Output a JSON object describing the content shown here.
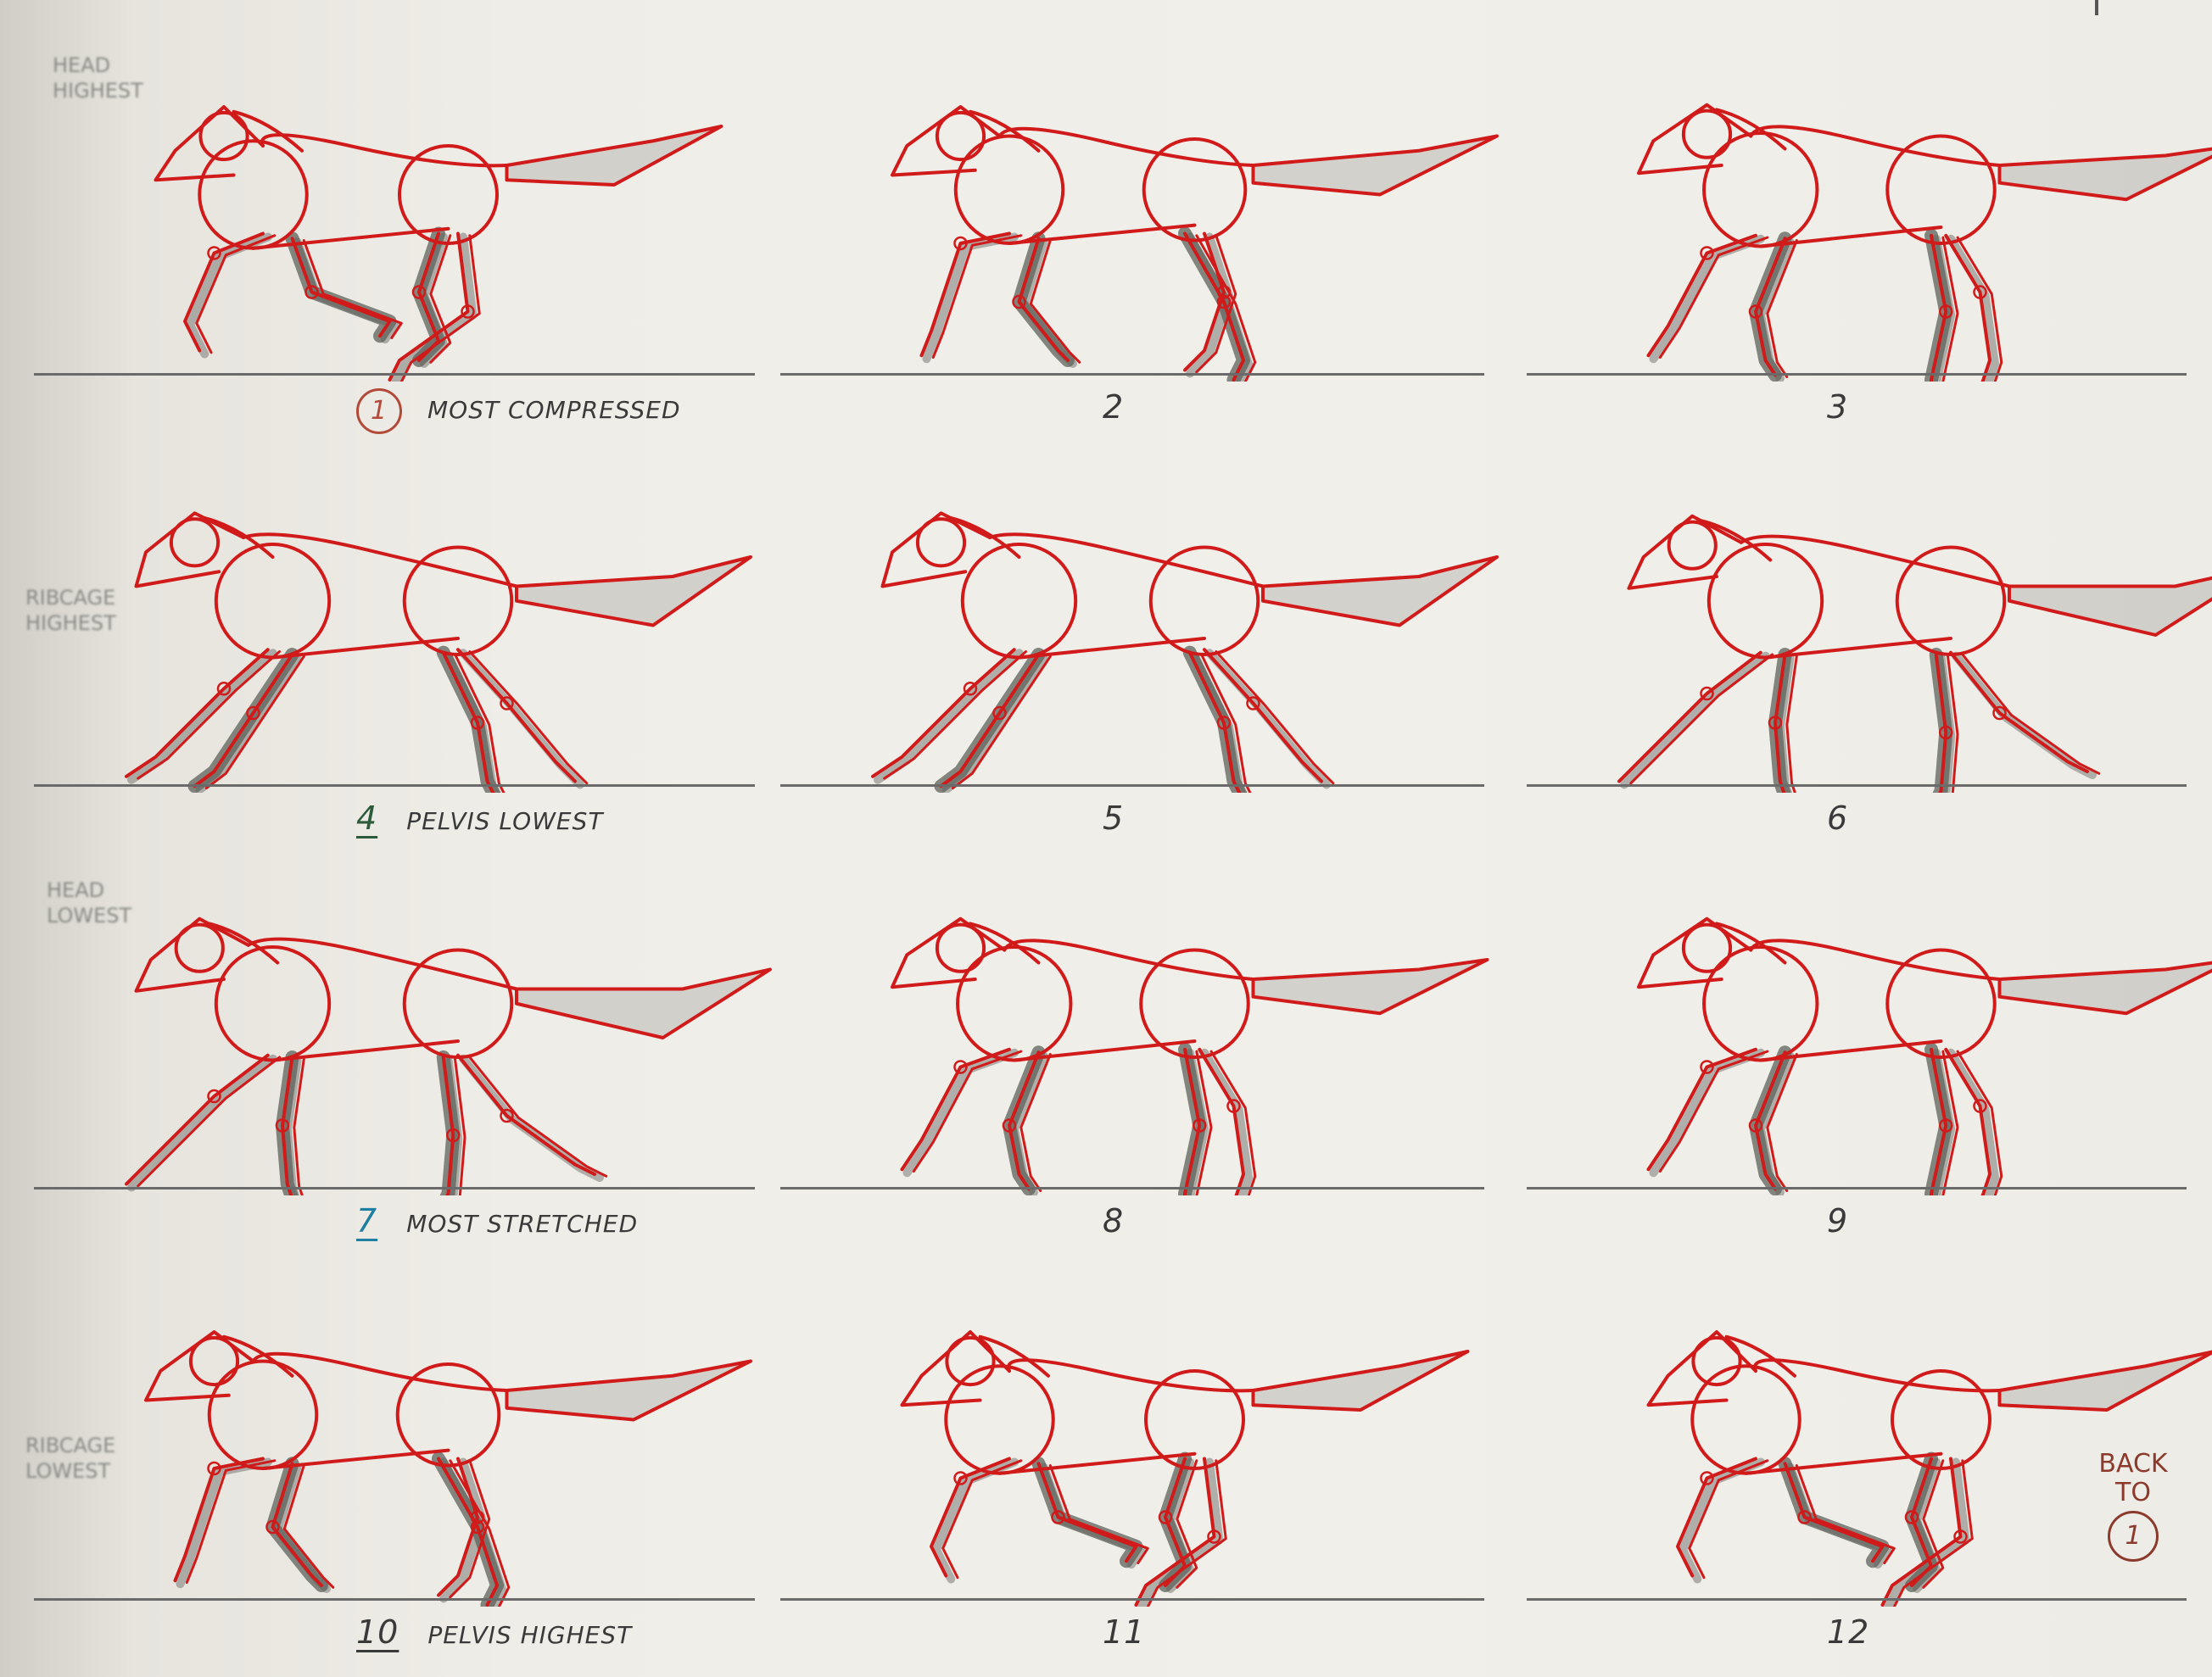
{
  "side_notes": {
    "head_highest": "HEAD\nHIGHEST",
    "ribcage_highest": "RIBCAGE\nHIGHEST",
    "head_lowest": "HEAD\nLOWEST",
    "ribcage_lowest": "RIBCAGE\nLOWEST"
  },
  "colors": {
    "overlay_red": "#d11a1a",
    "pencil": "#7a7a76",
    "shadow": "#5e625b",
    "ground": "#6a6a6a"
  },
  "frames": [
    {
      "number": "1",
      "caption": "MOST COMPRESSED",
      "number_style": "circled",
      "pose": "compressed"
    },
    {
      "number": "2",
      "caption": "",
      "number_style": "plain",
      "pose": "gather"
    },
    {
      "number": "3",
      "caption": "",
      "number_style": "plain",
      "pose": "push"
    },
    {
      "number": "4",
      "caption": "PELVIS LOWEST",
      "number_style": "underlined-green",
      "pose": "reach"
    },
    {
      "number": "5",
      "caption": "",
      "number_style": "plain",
      "pose": "reach"
    },
    {
      "number": "6",
      "caption": "",
      "number_style": "plain",
      "pose": "stretch"
    },
    {
      "number": "7",
      "caption": "MOST STRETCHED",
      "number_style": "underlined-blue",
      "pose": "stretch"
    },
    {
      "number": "8",
      "caption": "",
      "number_style": "plain",
      "pose": "push"
    },
    {
      "number": "9",
      "caption": "",
      "number_style": "plain",
      "pose": "push"
    },
    {
      "number": "10",
      "caption": "PELVIS HIGHEST",
      "number_style": "underlined",
      "pose": "gather"
    },
    {
      "number": "11",
      "caption": "",
      "number_style": "plain",
      "pose": "compressed"
    },
    {
      "number": "12",
      "caption": "",
      "number_style": "plain",
      "pose": "compressed"
    }
  ],
  "back_to": {
    "label": "BACK TO",
    "target": "1"
  }
}
